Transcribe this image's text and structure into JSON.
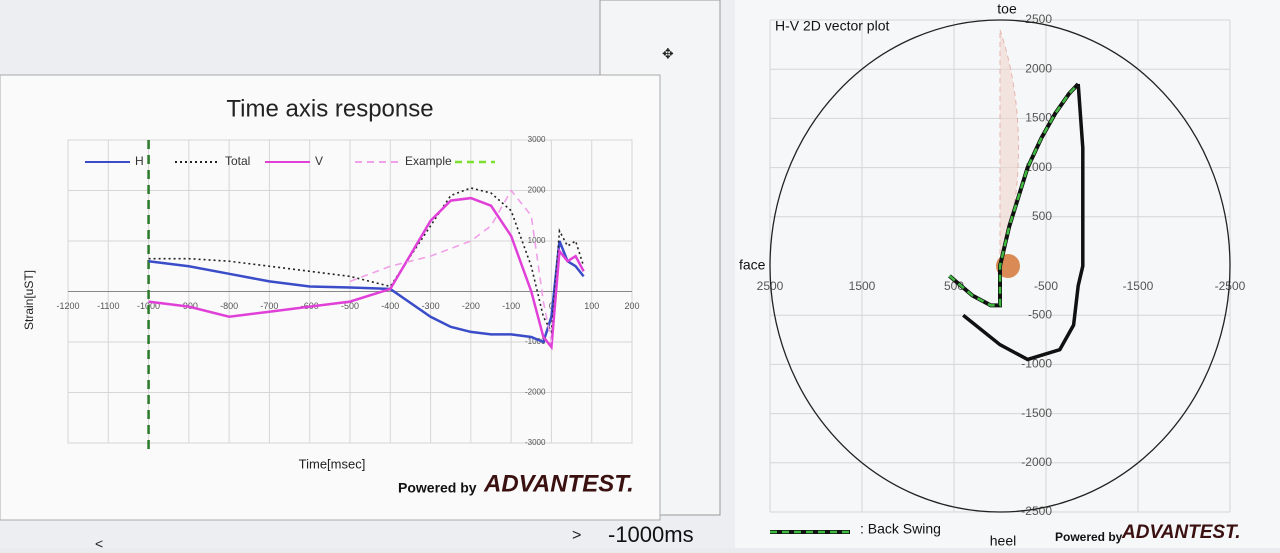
{
  "chart_data": [
    {
      "type": "line",
      "title": "Time axis response",
      "x_label": "Time[msec]",
      "y_label": "Strain[uST]",
      "xlim": [
        -1200,
        200
      ],
      "xticks": [
        -1200,
        -1100,
        -1000,
        -900,
        -800,
        -700,
        -600,
        -500,
        -400,
        -300,
        -200,
        -100,
        0,
        100,
        200
      ],
      "ylim": [
        -3000,
        3000
      ],
      "yticks": [
        -3000,
        -2000,
        -1000,
        1000,
        2000,
        3000
      ],
      "grid": true,
      "marker_x": -1000,
      "marker_color": "#2a7a2a",
      "x": [
        -1000,
        -900,
        -800,
        -700,
        -600,
        -500,
        -400,
        -300,
        -250,
        -200,
        -150,
        -100,
        -50,
        -20,
        0,
        20,
        40,
        60,
        80
      ],
      "series": [
        {
          "name": "H",
          "color": "#3a4cc8",
          "style": "solid",
          "values": [
            600,
            500,
            350,
            200,
            100,
            80,
            50,
            -500,
            -700,
            -800,
            -850,
            -850,
            -900,
            -1000,
            -500,
            1000,
            600,
            500,
            300
          ]
        },
        {
          "name": "Total",
          "color": "#222222",
          "style": "dotted",
          "values": [
            650,
            650,
            600,
            500,
            400,
            300,
            100,
            1300,
            1900,
            2050,
            1950,
            1600,
            500,
            -500,
            -800,
            1200,
            900,
            1000,
            500
          ]
        },
        {
          "name": "V",
          "color": "#e040d8",
          "style": "solid",
          "values": [
            -200,
            -300,
            -500,
            -400,
            -300,
            -200,
            50,
            1400,
            1800,
            1850,
            1700,
            1100,
            0,
            -900,
            -1100,
            800,
            600,
            700,
            400
          ]
        },
        {
          "name": "Example",
          "color": "#f0a0e8",
          "style": "dashed",
          "values": [
            null,
            null,
            null,
            null,
            null,
            200,
            500,
            700,
            850,
            1000,
            1300,
            2000,
            1500,
            -200,
            -1000,
            null,
            null,
            null,
            null
          ]
        }
      ]
    },
    {
      "type": "vector",
      "title": "H-V 2D vector plot",
      "top_label": "toe",
      "left_label": "face",
      "bottom_label": "heel",
      "xlim": [
        2500,
        -2500
      ],
      "xticks": [
        2500,
        1500,
        500,
        -500,
        -1500,
        -2500
      ],
      "ylim": [
        -2500,
        2500
      ],
      "yticks": [
        2500,
        2000,
        1500,
        1000,
        500,
        -500,
        -1000,
        -1500,
        -2000,
        -2500
      ],
      "grid": true,
      "series": [
        {
          "name": ": Back Swing",
          "color": "#3fb83f",
          "style": "dashed",
          "x": [
            550,
            300,
            100,
            0,
            0,
            -100,
            -300,
            -450,
            -600,
            -750,
            -850
          ],
          "values": [
            -100,
            -300,
            -400,
            -400,
            0,
            400,
            1000,
            1300,
            1550,
            1750,
            1850
          ]
        },
        {
          "color": "#111111",
          "style": "solid",
          "x": [
            -850,
            -900,
            -900,
            -900,
            -850,
            -800,
            -650,
            -300,
            0,
            400
          ],
          "values": [
            1850,
            1200,
            500,
            0,
            -200,
            -600,
            -850,
            -950,
            -800,
            -500
          ]
        }
      ]
    }
  ],
  "ui": {
    "powered_by": "Powered by",
    "brand": "ADVANTEST.",
    "time_label": "-1000ms",
    "next": ">",
    "prev": "<"
  }
}
